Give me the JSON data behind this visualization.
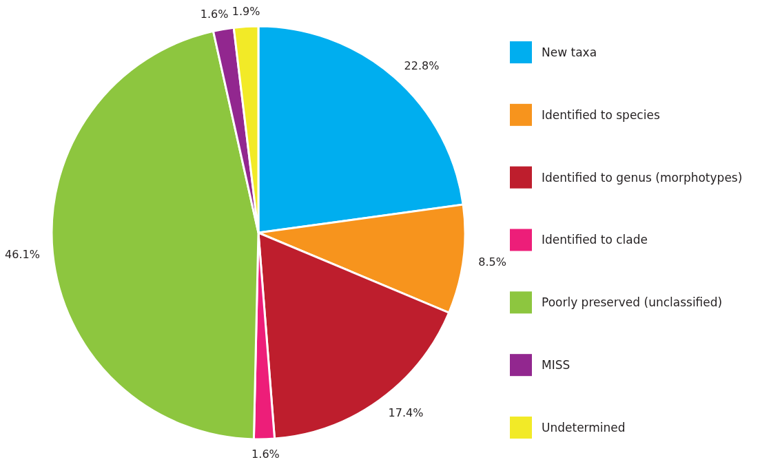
{
  "chart_data": {
    "type": "pie",
    "categories": [
      "New taxa",
      "Identified to species",
      "Identified to genus (morphotypes)",
      "Identified to clade",
      "Poorly preserved (unclassified)",
      "MISS",
      "Undetermined"
    ],
    "values": [
      22.8,
      8.5,
      17.4,
      1.6,
      46.1,
      1.6,
      1.9
    ],
    "value_labels": [
      "22.8%",
      "8.5%",
      "17.4%",
      "1.6%",
      "46.1%",
      "1.6%",
      "1.9%"
    ],
    "colors": [
      "#00aeef",
      "#f7941d",
      "#be1e2d",
      "#ed1e79",
      "#8dc63f",
      "#92278f",
      "#f2ea27"
    ],
    "legend": "right"
  }
}
